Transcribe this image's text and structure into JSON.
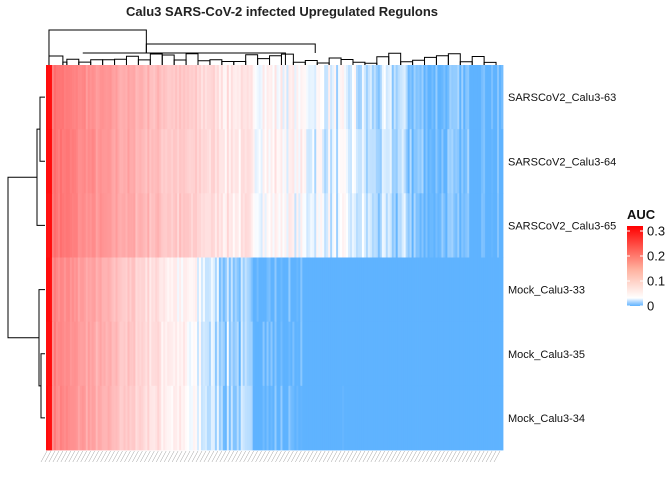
{
  "chart_data": {
    "type": "heatmap",
    "title": "Calu3 SARS-CoV-2 infected Upregulated Regulons",
    "rows": [
      "SARSCoV2_Calu3-63",
      "SARSCoV2_Calu3-64",
      "SARSCoV2_Calu3-65",
      "Mock_Calu3-33",
      "Mock_Calu3-35",
      "Mock_Calu3-34"
    ],
    "row_groups": [
      "SARSCoV2",
      "SARSCoV2",
      "SARSCoV2",
      "Mock",
      "Mock",
      "Mock"
    ],
    "n_columns": 230,
    "value_range": [
      0,
      0.32
    ],
    "legend": {
      "title": "AUC",
      "ticks": [
        "0",
        "0.1",
        "0.2",
        "0.3"
      ],
      "tick_values": [
        0,
        0.1,
        0.2,
        0.3
      ],
      "placement": "right"
    },
    "colors": {
      "high": "#ff0000",
      "mid": "#ffffff",
      "low": "#5fb3ff",
      "dendrogram": "#000000"
    },
    "row_dendrogram": "SARSCoV2 samples cluster together; Mock samples cluster together",
    "column_dendrogram": true,
    "column_labels_visible": true
  }
}
